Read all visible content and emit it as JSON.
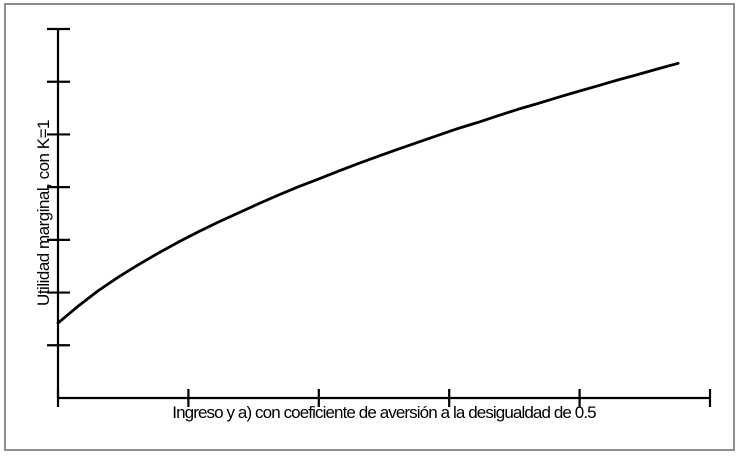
{
  "figure": {
    "background": "#ffffff",
    "border_color": "#8e8e8e",
    "stroke_color": "#000000",
    "text_color": "#000000"
  },
  "chart_data": {
    "type": "line",
    "title": "",
    "xlabel": "Ingreso y a) con coeficiente de aversión a la desigualdad de 0.5",
    "ylabel": "Utilidad marginal, con K=1",
    "description": "Qualitative sketch: concave increasing (square-root-shaped) marginal utility curve of income with K=1 and inequality-aversion coefficient 0.5. Axes have unlabeled tick marks only.",
    "x_axis": {
      "tick_count": 5,
      "has_origin_tick": true,
      "tick_labels": [],
      "numeric_labels_shown": false
    },
    "y_axis": {
      "tick_count": 7,
      "tick_labels": [],
      "numeric_labels_shown": false
    },
    "grid": false,
    "legend": false,
    "series": [
      {
        "name": "utilidad-marginal-curve",
        "color": "#000000",
        "x_range_fraction": [
          0,
          0.951
        ],
        "points": [
          [
            0.0,
            0.203
          ],
          [
            0.031,
            0.249
          ],
          [
            0.061,
            0.29
          ],
          [
            0.092,
            0.327
          ],
          [
            0.123,
            0.361
          ],
          [
            0.153,
            0.392
          ],
          [
            0.184,
            0.422
          ],
          [
            0.215,
            0.45
          ],
          [
            0.245,
            0.476
          ],
          [
            0.276,
            0.501
          ],
          [
            0.307,
            0.526
          ],
          [
            0.337,
            0.549
          ],
          [
            0.368,
            0.572
          ],
          [
            0.399,
            0.593
          ],
          [
            0.429,
            0.614
          ],
          [
            0.46,
            0.635
          ],
          [
            0.491,
            0.655
          ],
          [
            0.521,
            0.674
          ],
          [
            0.552,
            0.693
          ],
          [
            0.583,
            0.712
          ],
          [
            0.613,
            0.73
          ],
          [
            0.644,
            0.747
          ],
          [
            0.675,
            0.765
          ],
          [
            0.705,
            0.782
          ],
          [
            0.736,
            0.798
          ],
          [
            0.767,
            0.815
          ],
          [
            0.798,
            0.831
          ],
          [
            0.828,
            0.846
          ],
          [
            0.859,
            0.862
          ],
          [
            0.89,
            0.877
          ],
          [
            0.92,
            0.892
          ],
          [
            0.951,
            0.907
          ]
        ]
      }
    ]
  }
}
